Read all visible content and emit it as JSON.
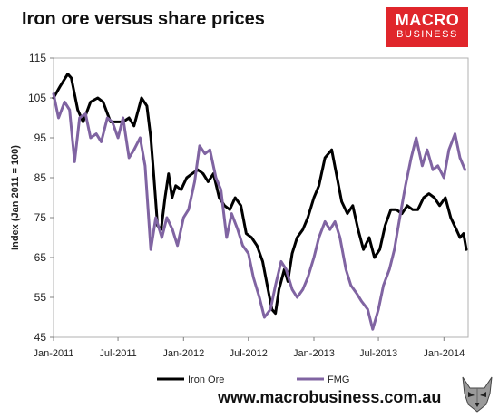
{
  "header": {
    "title": "Iron ore versus share prices"
  },
  "logo": {
    "line1": "MACRO",
    "line2": "BUSINESS"
  },
  "footer": {
    "url": "www.macrobusiness.com.au"
  },
  "chart_data": {
    "type": "line",
    "title": "Iron ore versus share prices",
    "ylabel": "Index (Jan 2011 = 100)",
    "xlabel": "",
    "ylim": [
      45,
      115
    ],
    "yticks": [
      45,
      55,
      65,
      75,
      85,
      95,
      105,
      115
    ],
    "xlim": [
      "2011-01-01",
      "2014-03-10"
    ],
    "xticks": [
      {
        "label": "Jan-2011",
        "date": "2011-01-01"
      },
      {
        "label": "Jul-2011",
        "date": "2011-07-01"
      },
      {
        "label": "Jan-2012",
        "date": "2012-01-01"
      },
      {
        "label": "Jul-2012",
        "date": "2012-07-01"
      },
      {
        "label": "Jan-2013",
        "date": "2013-01-01"
      },
      {
        "label": "Jul-2013",
        "date": "2013-07-01"
      },
      {
        "label": "Jan-2014",
        "date": "2014-01-01"
      }
    ],
    "grid": false,
    "legend_position": "bottom",
    "series": [
      {
        "name": "Iron Ore",
        "color": "#000000",
        "points": [
          [
            "2011-01-01",
            105
          ],
          [
            "2011-01-20",
            108
          ],
          [
            "2011-02-10",
            111
          ],
          [
            "2011-02-20",
            110
          ],
          [
            "2011-03-10",
            102
          ],
          [
            "2011-03-25",
            99
          ],
          [
            "2011-04-15",
            104
          ],
          [
            "2011-05-05",
            105
          ],
          [
            "2011-05-20",
            104
          ],
          [
            "2011-06-10",
            99
          ],
          [
            "2011-06-25",
            99
          ],
          [
            "2011-07-15",
            99
          ],
          [
            "2011-08-01",
            100
          ],
          [
            "2011-08-15",
            98
          ],
          [
            "2011-09-05",
            105
          ],
          [
            "2011-09-20",
            103
          ],
          [
            "2011-10-01",
            95
          ],
          [
            "2011-10-10",
            85
          ],
          [
            "2011-10-20",
            73
          ],
          [
            "2011-10-30",
            72
          ],
          [
            "2011-11-10",
            80
          ],
          [
            "2011-11-20",
            86
          ],
          [
            "2011-11-30",
            80
          ],
          [
            "2011-12-10",
            83
          ],
          [
            "2011-12-25",
            82
          ],
          [
            "2012-01-10",
            85
          ],
          [
            "2012-01-25",
            86
          ],
          [
            "2012-02-10",
            87
          ],
          [
            "2012-02-25",
            86
          ],
          [
            "2012-03-10",
            84
          ],
          [
            "2012-03-25",
            86
          ],
          [
            "2012-04-10",
            80
          ],
          [
            "2012-04-25",
            78
          ],
          [
            "2012-05-10",
            77
          ],
          [
            "2012-05-25",
            80
          ],
          [
            "2012-06-10",
            78
          ],
          [
            "2012-06-25",
            71
          ],
          [
            "2012-07-10",
            70
          ],
          [
            "2012-07-25",
            68
          ],
          [
            "2012-08-10",
            64
          ],
          [
            "2012-08-25",
            57
          ],
          [
            "2012-09-05",
            52
          ],
          [
            "2012-09-15",
            51
          ],
          [
            "2012-09-25",
            57
          ],
          [
            "2012-10-10",
            62
          ],
          [
            "2012-10-20",
            59
          ],
          [
            "2012-11-01",
            66
          ],
          [
            "2012-11-15",
            70
          ],
          [
            "2012-12-01",
            72
          ],
          [
            "2012-12-15",
            75
          ],
          [
            "2013-01-01",
            80
          ],
          [
            "2013-01-15",
            83
          ],
          [
            "2013-02-01",
            90
          ],
          [
            "2013-02-20",
            92
          ],
          [
            "2013-03-05",
            86
          ],
          [
            "2013-03-20",
            79
          ],
          [
            "2013-04-05",
            76
          ],
          [
            "2013-04-20",
            78
          ],
          [
            "2013-05-05",
            72
          ],
          [
            "2013-05-20",
            67
          ],
          [
            "2013-06-05",
            70
          ],
          [
            "2013-06-20",
            65
          ],
          [
            "2013-07-05",
            67
          ],
          [
            "2013-07-20",
            73
          ],
          [
            "2013-08-05",
            77
          ],
          [
            "2013-08-20",
            77
          ],
          [
            "2013-09-05",
            76
          ],
          [
            "2013-09-20",
            78
          ],
          [
            "2013-10-05",
            77
          ],
          [
            "2013-10-20",
            77
          ],
          [
            "2013-11-05",
            80
          ],
          [
            "2013-11-20",
            81
          ],
          [
            "2013-12-05",
            80
          ],
          [
            "2013-12-20",
            78
          ],
          [
            "2014-01-05",
            80
          ],
          [
            "2014-01-20",
            75
          ],
          [
            "2014-02-05",
            72
          ],
          [
            "2014-02-15",
            70
          ],
          [
            "2014-02-25",
            71
          ],
          [
            "2014-03-05",
            67
          ]
        ]
      },
      {
        "name": "FMG",
        "color": "#8064a2",
        "points": [
          [
            "2011-01-01",
            106
          ],
          [
            "2011-01-15",
            100
          ],
          [
            "2011-02-01",
            104
          ],
          [
            "2011-02-15",
            102
          ],
          [
            "2011-03-01",
            89
          ],
          [
            "2011-03-15",
            100
          ],
          [
            "2011-04-01",
            101
          ],
          [
            "2011-04-15",
            95
          ],
          [
            "2011-05-01",
            96
          ],
          [
            "2011-05-15",
            94
          ],
          [
            "2011-06-01",
            100
          ],
          [
            "2011-06-15",
            99
          ],
          [
            "2011-07-01",
            95
          ],
          [
            "2011-07-15",
            100
          ],
          [
            "2011-08-01",
            90
          ],
          [
            "2011-08-15",
            92
          ],
          [
            "2011-09-01",
            95
          ],
          [
            "2011-09-15",
            88
          ],
          [
            "2011-10-01",
            67
          ],
          [
            "2011-10-15",
            75
          ],
          [
            "2011-11-01",
            70
          ],
          [
            "2011-11-15",
            75
          ],
          [
            "2011-12-01",
            72
          ],
          [
            "2011-12-15",
            68
          ],
          [
            "2012-01-01",
            75
          ],
          [
            "2012-01-15",
            77
          ],
          [
            "2012-02-01",
            84
          ],
          [
            "2012-02-15",
            93
          ],
          [
            "2012-03-01",
            91
          ],
          [
            "2012-03-15",
            92
          ],
          [
            "2012-04-01",
            85
          ],
          [
            "2012-04-15",
            82
          ],
          [
            "2012-05-01",
            70
          ],
          [
            "2012-05-15",
            76
          ],
          [
            "2012-06-01",
            72
          ],
          [
            "2012-06-15",
            68
          ],
          [
            "2012-07-01",
            66
          ],
          [
            "2012-07-15",
            60
          ],
          [
            "2012-08-01",
            55
          ],
          [
            "2012-08-15",
            50
          ],
          [
            "2012-09-01",
            52
          ],
          [
            "2012-09-15",
            58
          ],
          [
            "2012-10-01",
            64
          ],
          [
            "2012-10-15",
            62
          ],
          [
            "2012-11-01",
            57
          ],
          [
            "2012-11-15",
            55
          ],
          [
            "2012-12-01",
            57
          ],
          [
            "2012-12-15",
            60
          ],
          [
            "2013-01-01",
            65
          ],
          [
            "2013-01-15",
            70
          ],
          [
            "2013-02-01",
            74
          ],
          [
            "2013-02-15",
            72
          ],
          [
            "2013-03-01",
            74
          ],
          [
            "2013-03-15",
            70
          ],
          [
            "2013-04-01",
            62
          ],
          [
            "2013-04-15",
            58
          ],
          [
            "2013-05-01",
            56
          ],
          [
            "2013-05-15",
            54
          ],
          [
            "2013-06-01",
            52
          ],
          [
            "2013-06-15",
            47
          ],
          [
            "2013-07-01",
            52
          ],
          [
            "2013-07-15",
            58
          ],
          [
            "2013-08-01",
            62
          ],
          [
            "2013-08-15",
            67
          ],
          [
            "2013-09-01",
            76
          ],
          [
            "2013-09-15",
            83
          ],
          [
            "2013-10-01",
            90
          ],
          [
            "2013-10-15",
            95
          ],
          [
            "2013-11-01",
            88
          ],
          [
            "2013-11-15",
            92
          ],
          [
            "2013-12-01",
            87
          ],
          [
            "2013-12-15",
            88
          ],
          [
            "2014-01-01",
            85
          ],
          [
            "2014-01-15",
            92
          ],
          [
            "2014-02-01",
            96
          ],
          [
            "2014-02-15",
            90
          ],
          [
            "2014-03-01",
            87
          ]
        ]
      }
    ]
  }
}
